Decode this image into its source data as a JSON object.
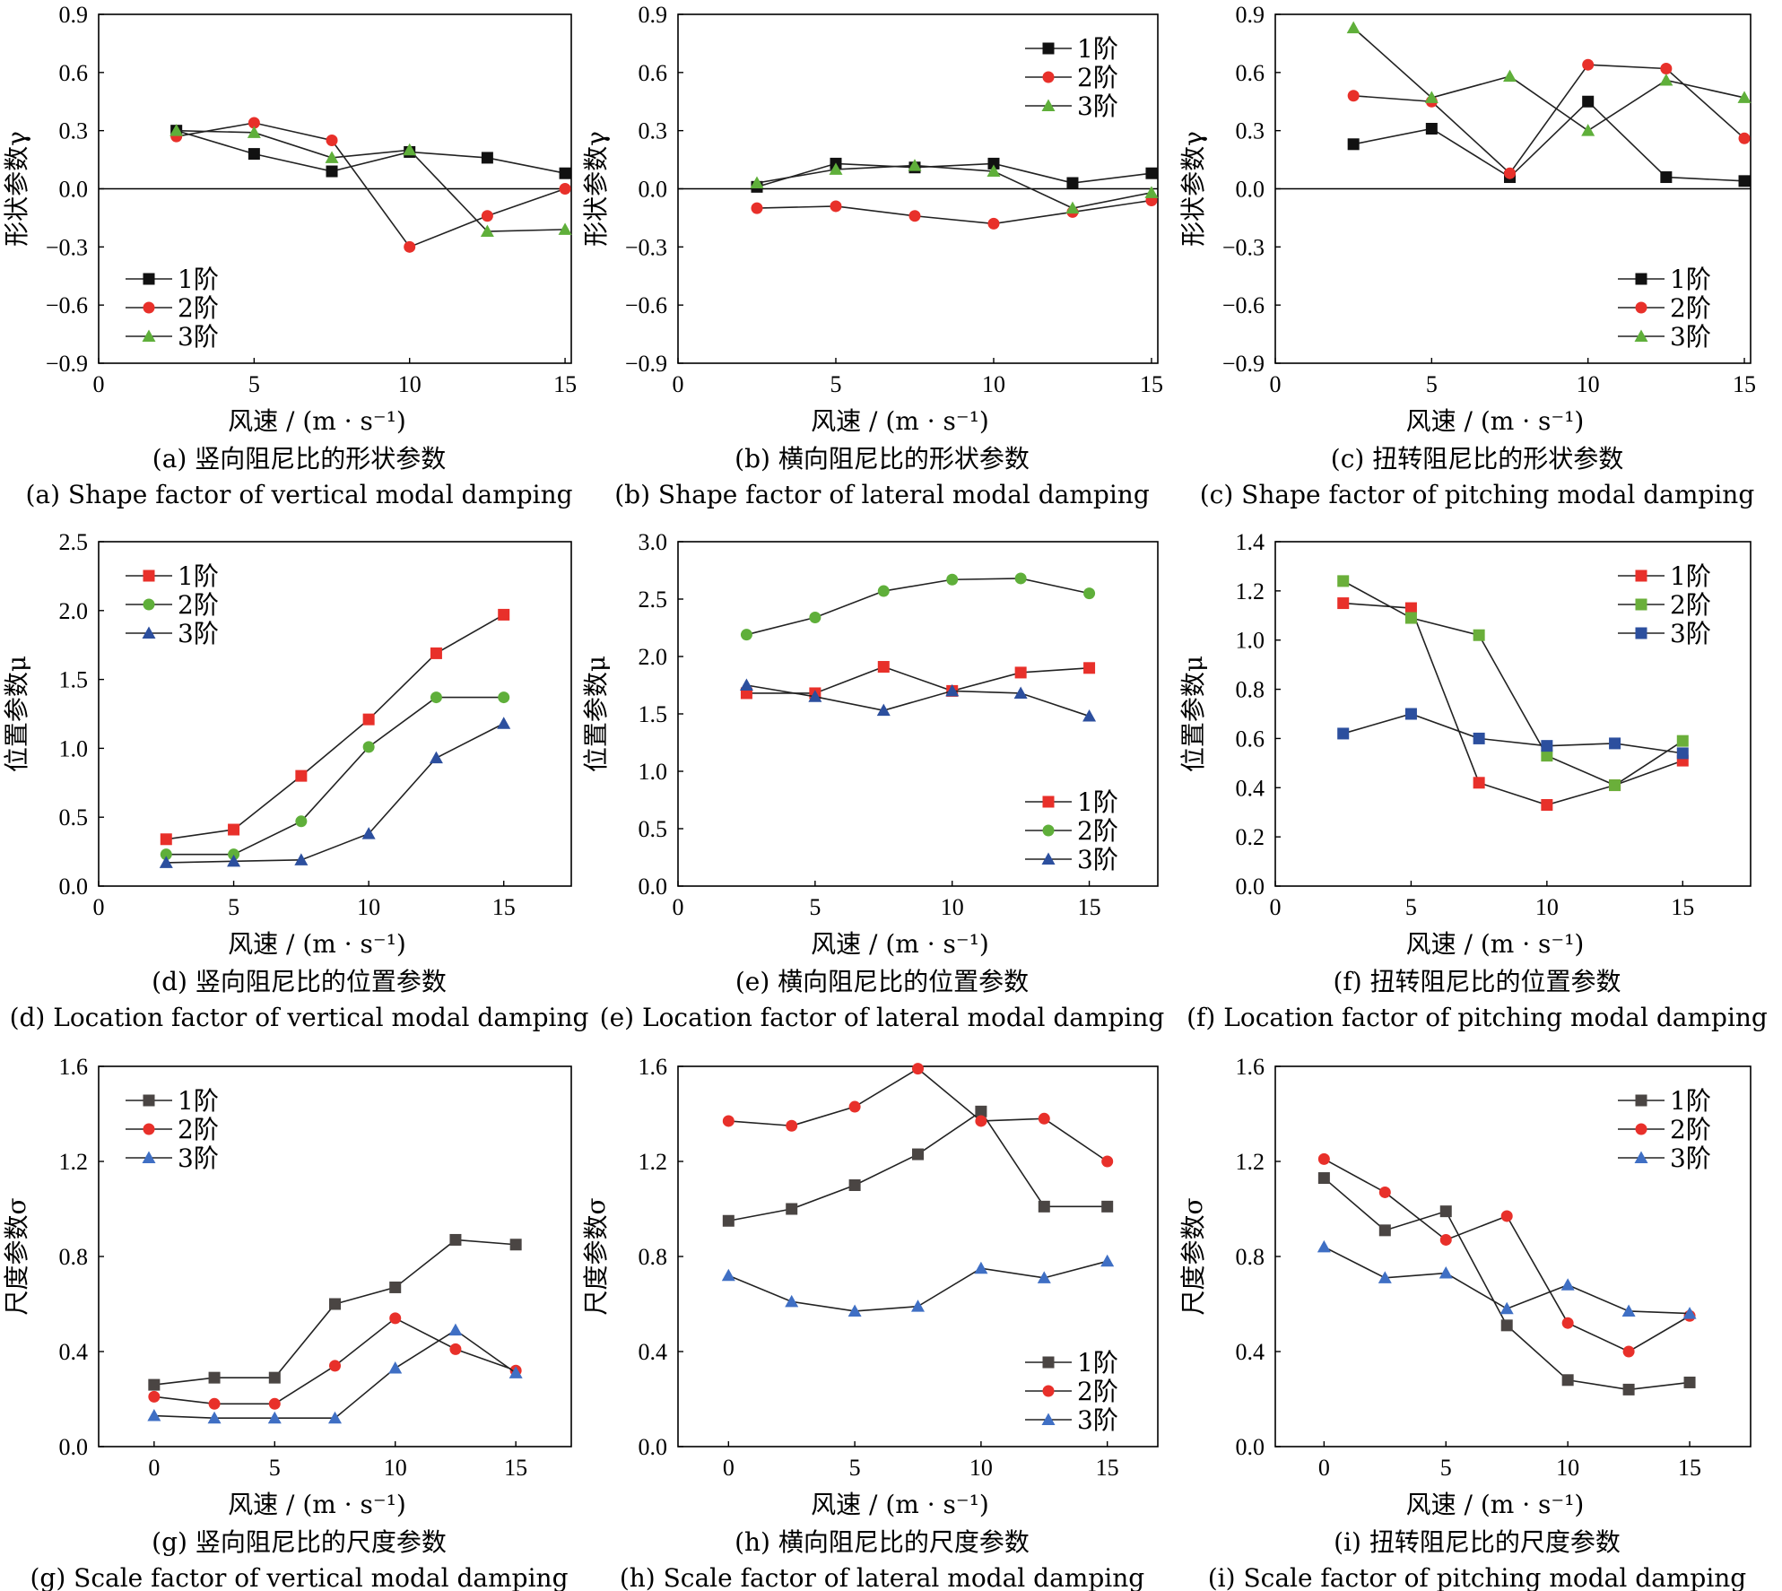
{
  "chart_data": [
    {
      "id": "a",
      "type": "line",
      "xlabel": "风速 / (m · s⁻¹)",
      "ylabel": "形状参数γ",
      "xlim": [
        0,
        15.2
      ],
      "ylim": [
        -0.9,
        0.9
      ],
      "xticks": [
        "0",
        "5",
        "10",
        "15"
      ],
      "yticks": [
        "0.9",
        "0.6",
        "0.3",
        "0.0",
        "−0.3",
        "−0.6",
        "−0.9"
      ],
      "zero_line": true,
      "legend_position": "bottom-left",
      "caption_cn": "(a) 竖向阻尼比的形状参数",
      "caption_en": "(a) Shape factor of vertical modal damping",
      "series": [
        {
          "name": "1阶",
          "color": "#111111",
          "marker": "square",
          "x": [
            2.5,
            5,
            7.5,
            10,
            12.5,
            15
          ],
          "y": [
            0.3,
            0.18,
            0.09,
            0.19,
            0.16,
            0.08
          ]
        },
        {
          "name": "2阶",
          "color": "#e8302a",
          "marker": "circle",
          "x": [
            2.5,
            5,
            7.5,
            10,
            12.5,
            15
          ],
          "y": [
            0.27,
            0.34,
            0.25,
            -0.3,
            -0.14,
            0.0
          ]
        },
        {
          "name": "3阶",
          "color": "#5faf3a",
          "marker": "triangle",
          "x": [
            2.5,
            5,
            7.5,
            10,
            12.5,
            15
          ],
          "y": [
            0.3,
            0.29,
            0.16,
            0.2,
            -0.22,
            -0.21
          ]
        }
      ]
    },
    {
      "id": "b",
      "type": "line",
      "xlabel": "风速 / (m · s⁻¹)",
      "ylabel": "形状参数γ",
      "xlim": [
        0,
        15.2
      ],
      "ylim": [
        -0.9,
        0.9
      ],
      "xticks": [
        "0",
        "5",
        "10",
        "15"
      ],
      "yticks": [
        "0.9",
        "0.6",
        "0.3",
        "0.0",
        "−0.3",
        "−0.6",
        "−0.9"
      ],
      "zero_line": true,
      "legend_position": "top-right",
      "caption_cn": "(b) 横向阻尼比的形状参数",
      "caption_en": "(b) Shape factor of lateral modal damping",
      "series": [
        {
          "name": "1阶",
          "color": "#111111",
          "marker": "square",
          "x": [
            2.5,
            5,
            7.5,
            10,
            12.5,
            15
          ],
          "y": [
            0.01,
            0.13,
            0.11,
            0.13,
            0.03,
            0.08
          ]
        },
        {
          "name": "2阶",
          "color": "#e8302a",
          "marker": "circle",
          "x": [
            2.5,
            5,
            7.5,
            10,
            12.5,
            15
          ],
          "y": [
            -0.1,
            -0.09,
            -0.14,
            -0.18,
            -0.12,
            -0.06
          ]
        },
        {
          "name": "3阶",
          "color": "#5faf3a",
          "marker": "triangle",
          "x": [
            2.5,
            5,
            7.5,
            10,
            12.5,
            15
          ],
          "y": [
            0.03,
            0.1,
            0.12,
            0.09,
            -0.1,
            -0.02
          ]
        }
      ]
    },
    {
      "id": "c",
      "type": "line",
      "xlabel": "风速 / (m · s⁻¹)",
      "ylabel": "形状参数γ",
      "xlim": [
        0,
        15.2
      ],
      "ylim": [
        -0.9,
        0.9
      ],
      "xticks": [
        "0",
        "5",
        "10",
        "15"
      ],
      "yticks": [
        "0.9",
        "0.6",
        "0.3",
        "0.0",
        "−0.3",
        "−0.6",
        "−0.9"
      ],
      "zero_line": true,
      "legend_position": "bottom-right",
      "caption_cn": "(c) 扭转阻尼比的形状参数",
      "caption_en": "(c) Shape factor of pitching modal damping",
      "series": [
        {
          "name": "1阶",
          "color": "#111111",
          "marker": "square",
          "x": [
            2.5,
            5,
            7.5,
            10,
            12.5,
            15
          ],
          "y": [
            0.23,
            0.31,
            0.06,
            0.45,
            0.06,
            0.04
          ]
        },
        {
          "name": "2阶",
          "color": "#e8302a",
          "marker": "circle",
          "x": [
            2.5,
            5,
            7.5,
            10,
            12.5,
            15
          ],
          "y": [
            0.48,
            0.45,
            0.08,
            0.64,
            0.62,
            0.26
          ]
        },
        {
          "name": "3阶",
          "color": "#5faf3a",
          "marker": "triangle",
          "x": [
            2.5,
            5,
            7.5,
            10,
            12.5,
            15
          ],
          "y": [
            0.83,
            0.47,
            0.58,
            0.3,
            0.56,
            0.47
          ]
        }
      ]
    },
    {
      "id": "d",
      "type": "line",
      "xlabel": "风速 / (m · s⁻¹)",
      "ylabel": "位置参数μ",
      "xlim": [
        0,
        17.5
      ],
      "ylim": [
        0,
        2.5
      ],
      "xticks": [
        "0",
        "5",
        "10",
        "15"
      ],
      "yticks": [
        "2.5",
        "2.0",
        "1.5",
        "1.0",
        "0.5",
        "0.0"
      ],
      "zero_line": false,
      "legend_position": "top-left",
      "caption_cn": "(d) 竖向阻尼比的位置参数",
      "caption_en": "(d) Location factor of vertical modal damping",
      "series": [
        {
          "name": "1阶",
          "color": "#e8302a",
          "marker": "square",
          "x": [
            2.5,
            5,
            7.5,
            10,
            12.5,
            15
          ],
          "y": [
            0.34,
            0.41,
            0.8,
            1.21,
            1.69,
            1.97
          ]
        },
        {
          "name": "2阶",
          "color": "#5faf3a",
          "marker": "circle",
          "x": [
            2.5,
            5,
            7.5,
            10,
            12.5,
            15
          ],
          "y": [
            0.23,
            0.23,
            0.47,
            1.01,
            1.37,
            1.37
          ]
        },
        {
          "name": "3阶",
          "color": "#2c4f9e",
          "marker": "triangle",
          "x": [
            2.5,
            5,
            7.5,
            10,
            12.5,
            15
          ],
          "y": [
            0.17,
            0.18,
            0.19,
            0.38,
            0.93,
            1.18
          ]
        }
      ]
    },
    {
      "id": "e",
      "type": "line",
      "xlabel": "风速 / (m · s⁻¹)",
      "ylabel": "位置参数μ",
      "xlim": [
        0,
        17.5
      ],
      "ylim": [
        0,
        3.0
      ],
      "xticks": [
        "0",
        "5",
        "10",
        "15"
      ],
      "yticks": [
        "3.0",
        "2.5",
        "2.0",
        "1.5",
        "1.0",
        "0.5",
        "0.0"
      ],
      "zero_line": false,
      "legend_position": "bottom-right",
      "caption_cn": "(e) 横向阻尼比的位置参数",
      "caption_en": "(e) Location factor of lateral modal damping",
      "series": [
        {
          "name": "1阶",
          "color": "#e8302a",
          "marker": "square",
          "x": [
            2.5,
            5,
            7.5,
            10,
            12.5,
            15
          ],
          "y": [
            1.68,
            1.68,
            1.91,
            1.7,
            1.86,
            1.9
          ]
        },
        {
          "name": "2阶",
          "color": "#5faf3a",
          "marker": "circle",
          "x": [
            2.5,
            5,
            7.5,
            10,
            12.5,
            15
          ],
          "y": [
            2.19,
            2.34,
            2.57,
            2.67,
            2.68,
            2.55
          ]
        },
        {
          "name": "3阶",
          "color": "#2c4f9e",
          "marker": "triangle",
          "x": [
            2.5,
            5,
            7.5,
            10,
            12.5,
            15
          ],
          "y": [
            1.75,
            1.65,
            1.53,
            1.7,
            1.68,
            1.48
          ]
        }
      ]
    },
    {
      "id": "f",
      "type": "line",
      "xlabel": "风速 / (m · s⁻¹)",
      "ylabel": "位置参数μ",
      "xlim": [
        0,
        17.5
      ],
      "ylim": [
        0,
        1.4
      ],
      "xticks": [
        "0",
        "5",
        "10",
        "15"
      ],
      "yticks": [
        "1.4",
        "1.2",
        "1.0",
        "0.8",
        "0.6",
        "0.4",
        "0.2",
        "0.0"
      ],
      "zero_line": false,
      "legend_position": "top-right",
      "caption_cn": "(f) 扭转阻尼比的位置参数",
      "caption_en": "(f) Location factor of pitching modal damping",
      "series": [
        {
          "name": "1阶",
          "color": "#e8302a",
          "marker": "square",
          "x": [
            2.5,
            5,
            7.5,
            10,
            12.5,
            15
          ],
          "y": [
            1.15,
            1.13,
            0.42,
            0.33,
            0.41,
            0.51
          ]
        },
        {
          "name": "2阶",
          "color": "#6aaf3a",
          "marker": "square",
          "x": [
            2.5,
            5,
            7.5,
            10,
            12.5,
            15
          ],
          "y": [
            1.24,
            1.09,
            1.02,
            0.53,
            0.41,
            0.59
          ]
        },
        {
          "name": "3阶",
          "color": "#2c4f9e",
          "marker": "square",
          "x": [
            2.5,
            5,
            7.5,
            10,
            12.5,
            15
          ],
          "y": [
            0.62,
            0.7,
            0.6,
            0.57,
            0.58,
            0.54
          ]
        }
      ]
    },
    {
      "id": "g",
      "type": "line",
      "xlabel": "风速 / (m · s⁻¹)",
      "ylabel": "尺度参数σ",
      "xlim": [
        -2.3,
        17.3
      ],
      "ylim": [
        0,
        1.6
      ],
      "xticks": [
        "0",
        "5",
        "10",
        "15"
      ],
      "yticks": [
        "1.6",
        "1.2",
        "0.8",
        "0.4",
        "0.0"
      ],
      "zero_line": false,
      "legend_position": "top-left",
      "caption_cn": "(g) 竖向阻尼比的尺度参数",
      "caption_en": "(g) Scale factor of vertical modal damping",
      "series": [
        {
          "name": "1阶",
          "color": "#4a4543",
          "marker": "square",
          "x": [
            0,
            2.5,
            5,
            7.5,
            10,
            12.5,
            15
          ],
          "y": [
            0.26,
            0.29,
            0.29,
            0.6,
            0.67,
            0.87,
            0.85
          ]
        },
        {
          "name": "2阶",
          "color": "#e8302a",
          "marker": "circle",
          "x": [
            0,
            2.5,
            5,
            7.5,
            10,
            12.5,
            15
          ],
          "y": [
            0.21,
            0.18,
            0.18,
            0.34,
            0.54,
            0.41,
            0.32
          ]
        },
        {
          "name": "3阶",
          "color": "#3f6fc4",
          "marker": "triangle",
          "x": [
            0,
            2.5,
            5,
            7.5,
            10,
            12.5,
            15
          ],
          "y": [
            0.13,
            0.12,
            0.12,
            0.12,
            0.33,
            0.49,
            0.31
          ]
        }
      ]
    },
    {
      "id": "h",
      "type": "line",
      "xlabel": "风速 / (m · s⁻¹)",
      "ylabel": "尺度参数σ",
      "xlim": [
        -2.0,
        17.0
      ],
      "ylim": [
        0,
        1.6
      ],
      "xticks": [
        "0",
        "5",
        "10",
        "15"
      ],
      "yticks": [
        "1.6",
        "1.2",
        "0.8",
        "0.4",
        "0.0"
      ],
      "zero_line": false,
      "legend_position": "bottom-right",
      "caption_cn": "(h) 横向阻尼比的尺度参数",
      "caption_en": "(h) Scale factor of lateral modal damping",
      "series": [
        {
          "name": "1阶",
          "color": "#4a4543",
          "marker": "square",
          "x": [
            0,
            2.5,
            5,
            7.5,
            10,
            12.5,
            15
          ],
          "y": [
            0.95,
            1.0,
            1.1,
            1.23,
            1.41,
            1.01,
            1.01
          ]
        },
        {
          "name": "2阶",
          "color": "#e8302a",
          "marker": "circle",
          "x": [
            0,
            2.5,
            5,
            7.5,
            10,
            12.5,
            15
          ],
          "y": [
            1.37,
            1.35,
            1.43,
            1.59,
            1.37,
            1.38,
            1.2
          ]
        },
        {
          "name": "3阶",
          "color": "#3f6fc4",
          "marker": "triangle",
          "x": [
            0,
            2.5,
            5,
            7.5,
            10,
            12.5,
            15
          ],
          "y": [
            0.72,
            0.61,
            0.57,
            0.59,
            0.75,
            0.71,
            0.78
          ]
        }
      ]
    },
    {
      "id": "i",
      "type": "line",
      "xlabel": "风速 / (m · s⁻¹)",
      "ylabel": "尺度参数σ",
      "xlim": [
        -2.0,
        17.5
      ],
      "ylim": [
        0,
        1.6
      ],
      "xticks": [
        "0",
        "5",
        "10",
        "15"
      ],
      "yticks": [
        "1.6",
        "1.2",
        "0.8",
        "0.4",
        "0.0"
      ],
      "zero_line": false,
      "legend_position": "top-right",
      "caption_cn": "(i) 扭转阻尼比的尺度参数",
      "caption_en": "(i) Scale factor of pitching modal damping",
      "series": [
        {
          "name": "1阶",
          "color": "#4a4543",
          "marker": "square",
          "x": [
            0,
            2.5,
            5,
            7.5,
            10,
            12.5,
            15
          ],
          "y": [
            1.13,
            0.91,
            0.99,
            0.51,
            0.28,
            0.24,
            0.27
          ]
        },
        {
          "name": "2阶",
          "color": "#e8302a",
          "marker": "circle",
          "x": [
            0,
            2.5,
            5,
            7.5,
            10,
            12.5,
            15
          ],
          "y": [
            1.21,
            1.07,
            0.87,
            0.97,
            0.52,
            0.4,
            0.55
          ]
        },
        {
          "name": "3阶",
          "color": "#3f6fc4",
          "marker": "triangle",
          "x": [
            0,
            2.5,
            5,
            7.5,
            10,
            12.5,
            15
          ],
          "y": [
            0.84,
            0.71,
            0.73,
            0.58,
            0.68,
            0.57,
            0.56
          ]
        }
      ]
    }
  ]
}
